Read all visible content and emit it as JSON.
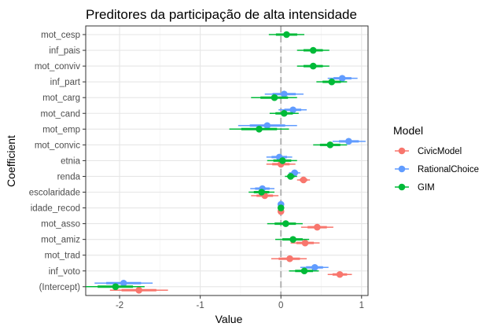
{
  "chart_data": {
    "type": "scatter",
    "title": "Preditores da participação de alta intensidade",
    "xlabel": "Value",
    "ylabel": "Coefficient",
    "xlim": [
      -2.42,
      1.08
    ],
    "xticks": [
      -2,
      -1,
      0,
      1
    ],
    "xtick_labels": [
      "-2",
      "-1",
      "0",
      "1"
    ],
    "zero_line": 0,
    "grid": true,
    "legend": {
      "title": "Model",
      "placement": "right",
      "entries": [
        "CivicModel",
        "RationalChoice",
        "GIM"
      ]
    },
    "categories": [
      "mot_cesp",
      "inf_pais",
      "mot_conviv",
      "inf_part",
      "mot_carg",
      "mot_cand",
      "mot_emp",
      "mot_convic",
      "etnia",
      "renda",
      "escolaridade",
      "idade_recod",
      "mot_asso",
      "mot_amiz",
      "mot_trad",
      "inf_voto",
      "(Intercept)"
    ],
    "series": [
      {
        "name": "CivicModel",
        "color": "#F8766D",
        "points": [
          {
            "category": "etnia",
            "value": 0.0,
            "low": -0.18,
            "high": 0.18
          },
          {
            "category": "renda",
            "value": 0.28,
            "low": 0.2,
            "high": 0.36
          },
          {
            "category": "escolaridade",
            "value": -0.2,
            "low": -0.37,
            "high": -0.03
          },
          {
            "category": "idade_recod",
            "value": 0.0,
            "low": -0.01,
            "high": 0.01
          },
          {
            "category": "mot_asso",
            "value": 0.45,
            "low": 0.25,
            "high": 0.65
          },
          {
            "category": "mot_amiz",
            "value": 0.3,
            "low": 0.12,
            "high": 0.48
          },
          {
            "category": "mot_trad",
            "value": 0.11,
            "low": -0.12,
            "high": 0.32
          },
          {
            "category": "inf_voto",
            "value": 0.73,
            "low": 0.58,
            "high": 0.88
          },
          {
            "category": "(Intercept)",
            "value": -1.76,
            "low": -2.12,
            "high": -1.4
          }
        ]
      },
      {
        "name": "RationalChoice",
        "color": "#619CFF",
        "points": [
          {
            "category": "inf_part",
            "value": 0.76,
            "low": 0.58,
            "high": 0.95
          },
          {
            "category": "mot_carg",
            "value": 0.04,
            "low": -0.2,
            "high": 0.28
          },
          {
            "category": "mot_cand",
            "value": 0.15,
            "low": -0.03,
            "high": 0.32
          },
          {
            "category": "mot_emp",
            "value": -0.17,
            "low": -0.53,
            "high": 0.2
          },
          {
            "category": "mot_convic",
            "value": 0.84,
            "low": 0.64,
            "high": 1.05
          },
          {
            "category": "etnia",
            "value": -0.02,
            "low": -0.18,
            "high": 0.14
          },
          {
            "category": "renda",
            "value": 0.17,
            "low": 0.1,
            "high": 0.24
          },
          {
            "category": "escolaridade",
            "value": -0.23,
            "low": -0.38,
            "high": -0.08
          },
          {
            "category": "idade_recod",
            "value": 0.0,
            "low": -0.01,
            "high": 0.01
          },
          {
            "category": "inf_voto",
            "value": 0.42,
            "low": 0.24,
            "high": 0.59
          },
          {
            "category": "(Intercept)",
            "value": -1.95,
            "low": -2.31,
            "high": -1.59
          }
        ]
      },
      {
        "name": "GIM",
        "color": "#00BA38",
        "points": [
          {
            "category": "mot_cesp",
            "value": 0.07,
            "low": -0.15,
            "high": 0.29
          },
          {
            "category": "inf_pais",
            "value": 0.4,
            "low": 0.2,
            "high": 0.6
          },
          {
            "category": "mot_conviv",
            "value": 0.4,
            "low": 0.2,
            "high": 0.6
          },
          {
            "category": "inf_part",
            "value": 0.63,
            "low": 0.44,
            "high": 0.82
          },
          {
            "category": "mot_carg",
            "value": -0.08,
            "low": -0.37,
            "high": 0.2
          },
          {
            "category": "mot_cand",
            "value": 0.04,
            "low": -0.14,
            "high": 0.22
          },
          {
            "category": "mot_emp",
            "value": -0.27,
            "low": -0.64,
            "high": 0.1
          },
          {
            "category": "mot_convic",
            "value": 0.61,
            "low": 0.4,
            "high": 0.82
          },
          {
            "category": "etnia",
            "value": 0.02,
            "low": -0.17,
            "high": 0.2
          },
          {
            "category": "renda",
            "value": 0.12,
            "low": 0.05,
            "high": 0.2
          },
          {
            "category": "escolaridade",
            "value": -0.24,
            "low": -0.4,
            "high": -0.08
          },
          {
            "category": "idade_recod",
            "value": 0.0,
            "low": -0.01,
            "high": 0.01
          },
          {
            "category": "mot_asso",
            "value": 0.06,
            "low": -0.17,
            "high": 0.27
          },
          {
            "category": "mot_amiz",
            "value": 0.15,
            "low": -0.07,
            "high": 0.35
          },
          {
            "category": "inf_voto",
            "value": 0.29,
            "low": 0.1,
            "high": 0.47
          },
          {
            "category": "(Intercept)",
            "value": -2.05,
            "low": -2.42,
            "high": -1.69
          }
        ]
      }
    ]
  }
}
